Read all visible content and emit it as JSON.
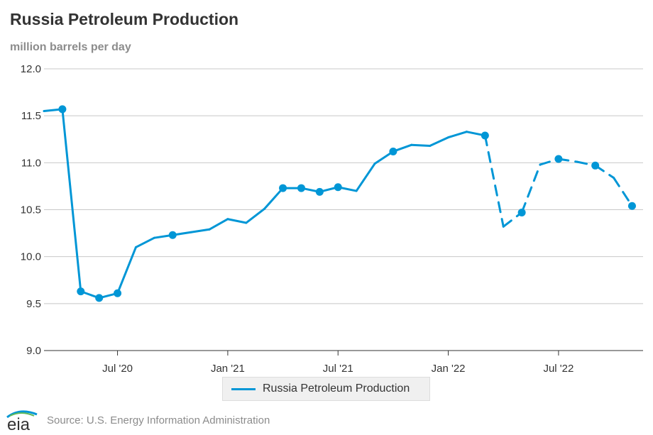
{
  "chart_data": {
    "type": "line",
    "title": "Russia Petroleum Production",
    "subtitle": "million barrels per day",
    "ylim": [
      9.0,
      12.0
    ],
    "y_ticks": [
      "12.0",
      "11.5",
      "11.0",
      "10.5",
      "10.0",
      "9.5",
      "9.0"
    ],
    "x_ticks": [
      "Jul '20",
      "Jan '21",
      "Jul '21",
      "Jan '22",
      "Jul '22"
    ],
    "grid": true,
    "legend_position": "bottom",
    "series": [
      {
        "name": "Russia Petroleum Production",
        "color": "#0096d6",
        "points": [
          {
            "x": "2020-03",
            "y": 11.55,
            "marker": false,
            "dashed": false
          },
          {
            "x": "2020-04",
            "y": 11.57,
            "marker": true,
            "dashed": false
          },
          {
            "x": "2020-05",
            "y": 9.63,
            "marker": true,
            "dashed": false
          },
          {
            "x": "2020-06",
            "y": 9.56,
            "marker": true,
            "dashed": false
          },
          {
            "x": "2020-07",
            "y": 9.61,
            "marker": true,
            "dashed": false
          },
          {
            "x": "2020-08",
            "y": 10.1,
            "marker": false,
            "dashed": false
          },
          {
            "x": "2020-09",
            "y": 10.2,
            "marker": false,
            "dashed": false
          },
          {
            "x": "2020-10",
            "y": 10.23,
            "marker": true,
            "dashed": false
          },
          {
            "x": "2020-11",
            "y": 10.26,
            "marker": false,
            "dashed": false
          },
          {
            "x": "2020-12",
            "y": 10.29,
            "marker": false,
            "dashed": false
          },
          {
            "x": "2021-01",
            "y": 10.4,
            "marker": false,
            "dashed": false
          },
          {
            "x": "2021-02",
            "y": 10.36,
            "marker": false,
            "dashed": false
          },
          {
            "x": "2021-03",
            "y": 10.51,
            "marker": false,
            "dashed": false
          },
          {
            "x": "2021-04",
            "y": 10.73,
            "marker": true,
            "dashed": false
          },
          {
            "x": "2021-05",
            "y": 10.73,
            "marker": true,
            "dashed": false
          },
          {
            "x": "2021-06",
            "y": 10.69,
            "marker": true,
            "dashed": false
          },
          {
            "x": "2021-07",
            "y": 10.74,
            "marker": true,
            "dashed": false
          },
          {
            "x": "2021-08",
            "y": 10.7,
            "marker": false,
            "dashed": false
          },
          {
            "x": "2021-09",
            "y": 10.99,
            "marker": false,
            "dashed": false
          },
          {
            "x": "2021-10",
            "y": 11.12,
            "marker": true,
            "dashed": false
          },
          {
            "x": "2021-11",
            "y": 11.19,
            "marker": false,
            "dashed": false
          },
          {
            "x": "2021-12",
            "y": 11.18,
            "marker": false,
            "dashed": false
          },
          {
            "x": "2022-01",
            "y": 11.27,
            "marker": false,
            "dashed": false
          },
          {
            "x": "2022-02",
            "y": 11.33,
            "marker": false,
            "dashed": false
          },
          {
            "x": "2022-03",
            "y": 11.29,
            "marker": true,
            "dashed": false
          },
          {
            "x": "2022-04",
            "y": 10.32,
            "marker": false,
            "dashed": true
          },
          {
            "x": "2022-05",
            "y": 10.47,
            "marker": true,
            "dashed": true
          },
          {
            "x": "2022-06",
            "y": 10.98,
            "marker": false,
            "dashed": true
          },
          {
            "x": "2022-07",
            "y": 11.04,
            "marker": true,
            "dashed": true
          },
          {
            "x": "2022-08",
            "y": 11.01,
            "marker": false,
            "dashed": true
          },
          {
            "x": "2022-09",
            "y": 10.97,
            "marker": true,
            "dashed": true
          },
          {
            "x": "2022-10",
            "y": 10.84,
            "marker": false,
            "dashed": true
          },
          {
            "x": "2022-11",
            "y": 10.54,
            "marker": true,
            "dashed": true
          }
        ]
      }
    ]
  },
  "legend": {
    "label": "Russia Petroleum Production",
    "color": "#0096d6"
  },
  "footer": {
    "logo_text": "eia",
    "source": "Source: U.S. Energy Information Administration"
  }
}
